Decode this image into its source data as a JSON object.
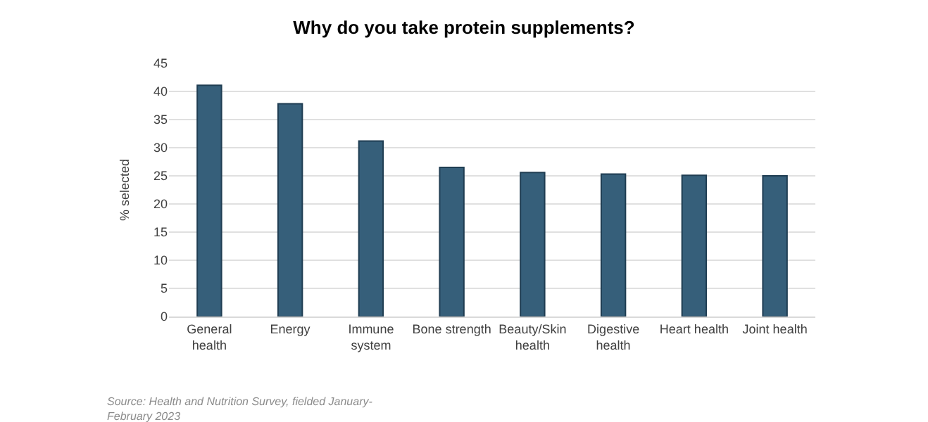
{
  "chart_data": {
    "type": "bar",
    "title": "Why do you take protein supplements?",
    "ylabel": "% selected",
    "categories": [
      "General\nhealth",
      "Energy",
      "Immune\nsystem",
      "Bone strength",
      "Beauty/Skin\nhealth",
      "Digestive\nhealth",
      "Heart health",
      "Joint health"
    ],
    "values": [
      41.1,
      37.8,
      31.2,
      26.5,
      25.6,
      25.3,
      25.1,
      25.0
    ],
    "color": "#365f7a",
    "ylim": [
      0,
      45
    ],
    "yticks": [
      0,
      5,
      10,
      15,
      20,
      25,
      30,
      35,
      40,
      45
    ],
    "grid": "y",
    "annotations": [
      "Source: Health and Nutrition Survey, fielded January-\nFebruary 2023"
    ]
  }
}
